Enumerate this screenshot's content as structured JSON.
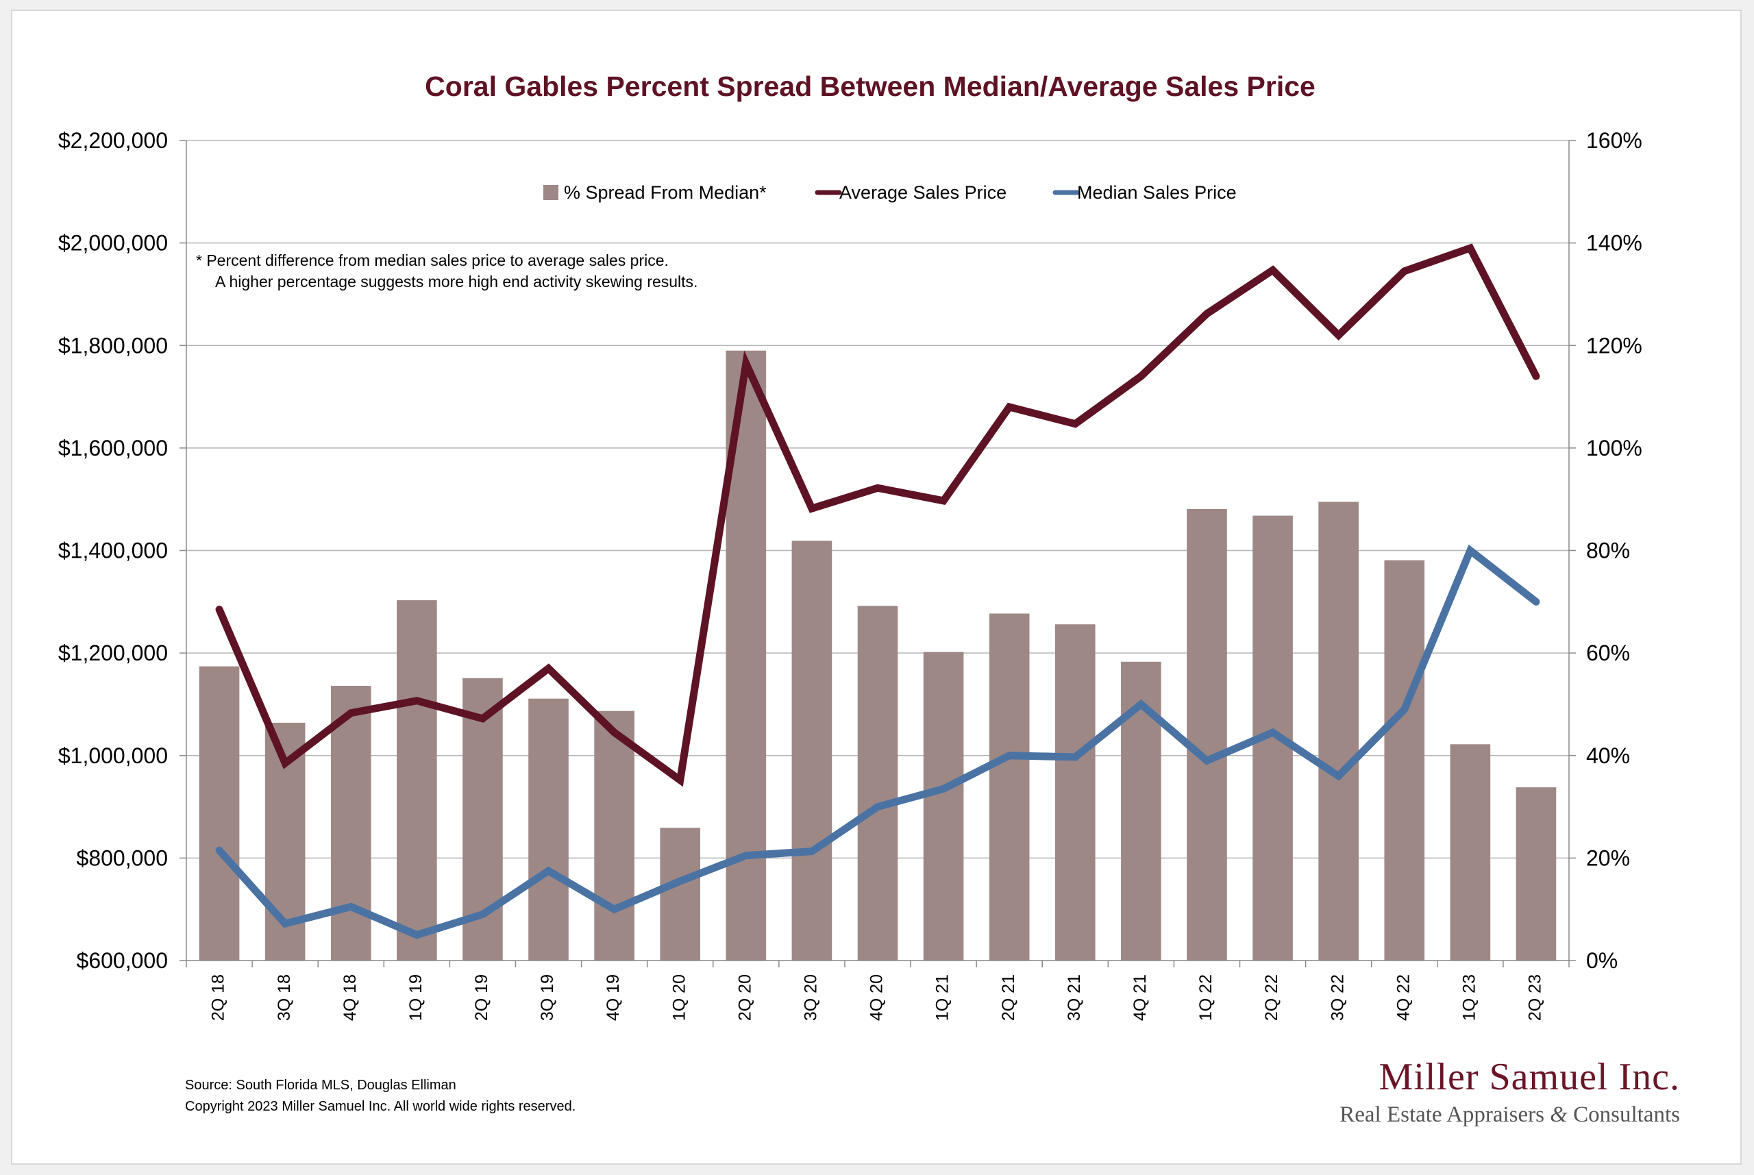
{
  "chart_data": {
    "type": "bar+line",
    "title": "Coral Gables Percent Spread Between Median/Average Sales Price",
    "categories": [
      "2Q 18",
      "3Q 18",
      "4Q 18",
      "1Q 19",
      "2Q 19",
      "3Q 19",
      "4Q 19",
      "1Q 20",
      "2Q 20",
      "3Q 20",
      "4Q 20",
      "1Q 21",
      "2Q 21",
      "3Q 21",
      "4Q 21",
      "1Q 22",
      "2Q 22",
      "3Q 22",
      "4Q 22",
      "1Q 23",
      "2Q 23"
    ],
    "series": [
      {
        "name": "% Spread From Median*",
        "kind": "bar",
        "axis": "right",
        "color": "#9e8886",
        "values": [
          57.4,
          46.4,
          53.6,
          70.3,
          55.1,
          51.1,
          48.7,
          25.9,
          119.0,
          81.9,
          69.2,
          60.2,
          67.7,
          65.6,
          58.3,
          88.1,
          86.8,
          89.5,
          78.1,
          42.2,
          33.8
        ]
      },
      {
        "name": "Average Sales Price",
        "kind": "line",
        "axis": "left",
        "color": "#5e1324",
        "values": [
          1285000,
          985000,
          1083000,
          1107000,
          1072000,
          1170000,
          1045000,
          952000,
          1765000,
          1482000,
          1522000,
          1497000,
          1680000,
          1647000,
          1740000,
          1862000,
          1947000,
          1820000,
          1945000,
          1990000,
          1740000
        ]
      },
      {
        "name": "Median Sales Price",
        "kind": "line",
        "axis": "left",
        "color": "#4a73a3",
        "values": [
          815000,
          672000,
          705000,
          650000,
          690000,
          775000,
          700000,
          755000,
          805000,
          813000,
          900000,
          935000,
          1000000,
          997000,
          1100000,
          990000,
          1045000,
          960000,
          1090000,
          1400000,
          1300000
        ]
      }
    ],
    "y_left": {
      "min": 600000,
      "max": 2200000,
      "step": 200000,
      "tick_labels": [
        "$600,000",
        "$800,000",
        "$1,000,000",
        "$1,200,000",
        "$1,400,000",
        "$1,600,000",
        "$1,800,000",
        "$2,000,000",
        "$2,200,000"
      ]
    },
    "y_right": {
      "min": 0,
      "max": 160,
      "step": 20,
      "tick_labels": [
        "0%",
        "20%",
        "40%",
        "60%",
        "80%",
        "100%",
        "120%",
        "140%",
        "160%"
      ]
    },
    "grid": true,
    "legend_position": "top-center",
    "note_lines": [
      "*  Percent difference from median sales price to average sales price.",
      "A higher percentage suggests more high end activity skewing results."
    ]
  },
  "footer": {
    "source": "Source: South Florida MLS, Douglas Elliman",
    "copyright": "Copyright 2023 Miller Samuel Inc.  All world wide rights reserved."
  },
  "logo": {
    "name": "Miller Samuel Inc.",
    "tagline_part1": "Real Estate Appraisers",
    "tagline_amp": "&",
    "tagline_part2": "Consultants"
  }
}
